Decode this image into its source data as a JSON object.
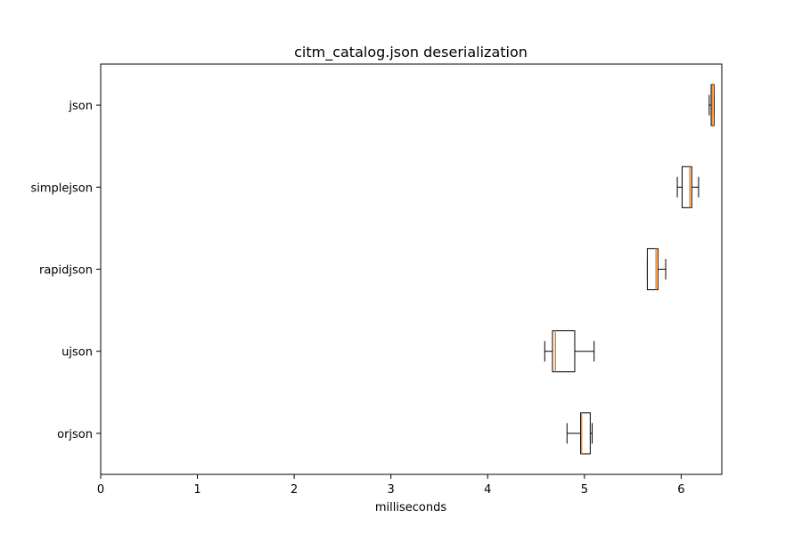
{
  "chart_data": {
    "type": "boxplot",
    "orientation": "horizontal",
    "title": "citm_catalog.json deserialization",
    "xlabel": "milliseconds",
    "ylabel": "",
    "xlim": [
      0,
      6.42
    ],
    "xticks": [
      0,
      1,
      2,
      3,
      4,
      5,
      6
    ],
    "categories": [
      "orjson",
      "ujson",
      "rapidjson",
      "simplejson",
      "json"
    ],
    "boxes": [
      {
        "name": "orjson",
        "whisker_low": 4.82,
        "q1": 4.96,
        "median": 4.97,
        "q3": 5.06,
        "whisker_high": 5.08
      },
      {
        "name": "ujson",
        "whisker_low": 4.59,
        "q1": 4.67,
        "median": 4.7,
        "q3": 4.9,
        "whisker_high": 5.1
      },
      {
        "name": "rapidjson",
        "whisker_low": 5.65,
        "q1": 5.65,
        "median": 5.74,
        "q3": 5.76,
        "whisker_high": 5.84
      },
      {
        "name": "simplejson",
        "whisker_low": 5.96,
        "q1": 6.01,
        "median": 6.09,
        "q3": 6.11,
        "whisker_high": 6.18
      },
      {
        "name": "json",
        "whisker_low": 6.29,
        "q1": 6.31,
        "median": 6.32,
        "q3": 6.34,
        "whisker_high": 6.34
      }
    ],
    "colors": {
      "box": "#000000",
      "median": "#ff7f0e",
      "axes": "#000000"
    }
  }
}
